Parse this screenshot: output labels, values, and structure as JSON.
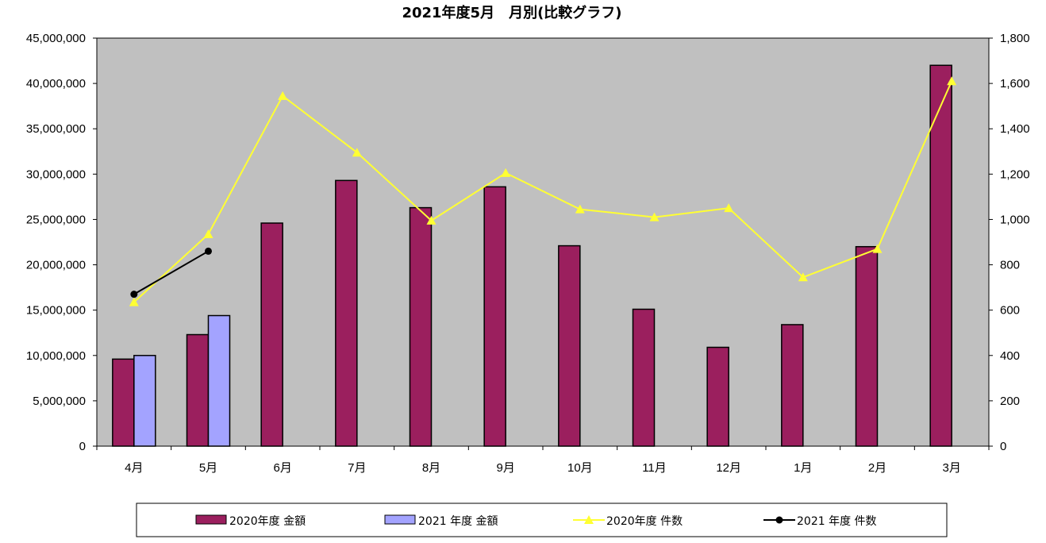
{
  "chart_data": {
    "type": "bar",
    "title": "2021年度5月　月別(比較グラフ)",
    "categories": [
      "4月",
      "5月",
      "6月",
      "7月",
      "8月",
      "9月",
      "10月",
      "11月",
      "12月",
      "1月",
      "2月",
      "3月"
    ],
    "series": [
      {
        "name": "2020年度 金額",
        "type": "bar",
        "axis": "left",
        "color": "#9B1F5E",
        "values": [
          9600000,
          12300000,
          24600000,
          29300000,
          26300000,
          28600000,
          22100000,
          15100000,
          10900000,
          13400000,
          22000000,
          42000000
        ]
      },
      {
        "name": "2021 年度 金額",
        "type": "bar",
        "axis": "left",
        "color": "#A3A3FF",
        "values": [
          10000000,
          14400000,
          null,
          null,
          null,
          null,
          null,
          null,
          null,
          null,
          null,
          null
        ]
      },
      {
        "name": "2020年度 件数",
        "type": "line",
        "axis": "right",
        "color": "#FFFF33",
        "marker": "triangle",
        "values": [
          635,
          935,
          1545,
          1295,
          995,
          1205,
          1045,
          1010,
          1050,
          745,
          870,
          1610
        ]
      },
      {
        "name": "2021 年度 件数",
        "type": "line",
        "axis": "right",
        "color": "#000000",
        "marker": "circle",
        "values": [
          670,
          860,
          null,
          null,
          null,
          null,
          null,
          null,
          null,
          null,
          null,
          null
        ]
      }
    ],
    "ylim_left": [
      0,
      45000000
    ],
    "yticks_left": [
      "0",
      "5,000,000",
      "10,000,000",
      "15,000,000",
      "20,000,000",
      "25,000,000",
      "30,000,000",
      "35,000,000",
      "40,000,000",
      "45,000,000"
    ],
    "ylim_right": [
      0,
      1800
    ],
    "yticks_right": [
      "0",
      "200",
      "400",
      "600",
      "800",
      "1,000",
      "1,200",
      "1,400",
      "1,600",
      "1,800"
    ],
    "plot_background": "#C0C0C0",
    "grid": false,
    "legend_position": "bottom"
  }
}
